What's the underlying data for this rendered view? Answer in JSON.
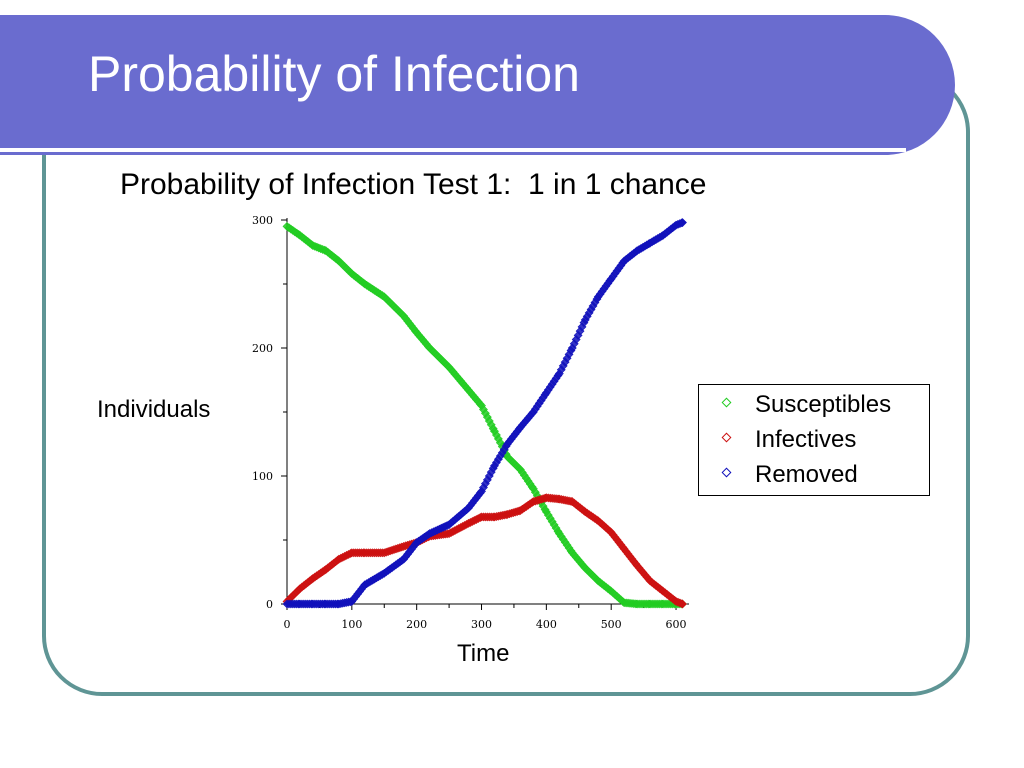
{
  "slide": {
    "title": "Probability of Infection"
  },
  "chart_data": {
    "type": "scatter",
    "title": "Probability of Infection Test 1:  1 in 1 chance",
    "xlabel": "Time",
    "ylabel": "Individuals",
    "xlim": [
      0,
      620
    ],
    "ylim": [
      0,
      300
    ],
    "xticks": [
      0,
      100,
      200,
      300,
      400,
      500,
      600
    ],
    "yticks": [
      0,
      100,
      200,
      300
    ],
    "grid": false,
    "legend_position": "right",
    "marker": "diamond",
    "series": [
      {
        "name": "Susceptibles",
        "color": "#22cc22",
        "x": [
          0,
          20,
          40,
          60,
          80,
          100,
          120,
          150,
          180,
          200,
          220,
          250,
          280,
          300,
          320,
          340,
          360,
          380,
          400,
          420,
          440,
          460,
          480,
          500,
          520,
          540,
          560,
          580,
          600,
          610
        ],
        "y": [
          295,
          288,
          280,
          276,
          268,
          258,
          250,
          240,
          225,
          212,
          200,
          185,
          167,
          155,
          135,
          115,
          105,
          90,
          72,
          55,
          40,
          28,
          18,
          10,
          1,
          0,
          0,
          0,
          0,
          0
        ]
      },
      {
        "name": "Infectives",
        "color": "#cc1111",
        "x": [
          0,
          20,
          40,
          60,
          80,
          100,
          120,
          150,
          180,
          200,
          220,
          250,
          280,
          300,
          320,
          340,
          360,
          380,
          400,
          420,
          440,
          460,
          480,
          500,
          520,
          540,
          560,
          580,
          600,
          610
        ],
        "y": [
          2,
          12,
          20,
          27,
          35,
          40,
          40,
          40,
          45,
          48,
          53,
          55,
          63,
          68,
          68,
          70,
          73,
          80,
          83,
          82,
          80,
          72,
          65,
          56,
          43,
          30,
          18,
          10,
          2,
          0
        ]
      },
      {
        "name": "Removed",
        "color": "#1111bb",
        "x": [
          0,
          20,
          40,
          60,
          80,
          100,
          120,
          150,
          180,
          200,
          220,
          250,
          280,
          300,
          320,
          340,
          360,
          380,
          400,
          420,
          440,
          460,
          480,
          500,
          520,
          540,
          560,
          580,
          600,
          610
        ],
        "y": [
          0,
          0,
          0,
          0,
          0,
          2,
          15,
          24,
          35,
          48,
          55,
          62,
          75,
          88,
          108,
          125,
          138,
          150,
          165,
          180,
          200,
          222,
          240,
          254,
          268,
          276,
          282,
          288,
          296,
          298
        ]
      }
    ]
  }
}
